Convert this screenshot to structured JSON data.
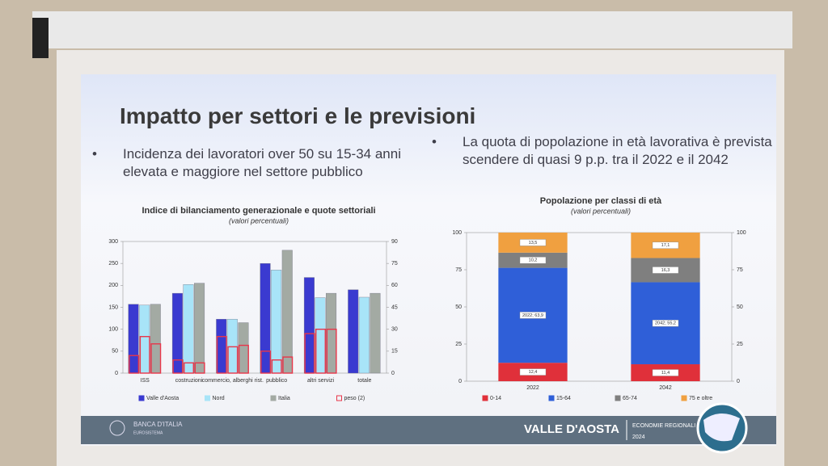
{
  "slide": {
    "title": "Impatto per settori e le previsioni",
    "bullets": [
      "Incidenza dei lavoratori over 50 su 15-34 anni elevata e maggiore nel settore pubblico",
      "La quota di popolazione in età lavorativa è prevista scendere di quasi 9 p.p. tra il 2022 e il 2042"
    ],
    "footer": {
      "logo": "BANCA D'ITALIA",
      "logo_sub": "EUROSISTEMA",
      "region": "VALLE D'AOSTA",
      "series": "ECONOMIE REGIONALI",
      "year": "2024"
    }
  },
  "chart_data": [
    {
      "type": "bar",
      "title": "Indice di bilanciamento generazionale e quote settoriali",
      "subtitle": "(valori percentuali)",
      "categories": [
        "ISS",
        "costruzioni",
        "commercio, alberghi rist.",
        "pubblico",
        "altri servizi",
        "totale"
      ],
      "series": [
        {
          "name": "Valle d'Aosta",
          "color": "#3a3ad0",
          "values": [
            157,
            182,
            123,
            250,
            218,
            190
          ]
        },
        {
          "name": "Nord",
          "color": "#a8e4f8",
          "values": [
            155,
            202,
            123,
            235,
            172,
            173
          ]
        },
        {
          "name": "Italia",
          "color": "#a3aaa3",
          "values": [
            157,
            205,
            115,
            280,
            182,
            182
          ]
        },
        {
          "name": "peso (2)",
          "color": "#e8364a",
          "axis": "y2",
          "values": [
            [
              12,
              25,
              20
            ],
            [
              9,
              7,
              7
            ],
            [
              25,
              18,
              19
            ],
            [
              15,
              9,
              11
            ],
            [
              27,
              30,
              30
            ],
            null
          ]
        }
      ],
      "ylim": [
        0,
        300
      ],
      "yticks": [
        0,
        50,
        100,
        150,
        200,
        250,
        300
      ],
      "y2lim": [
        0,
        90
      ],
      "y2ticks": [
        0,
        15,
        30,
        45,
        60,
        75,
        90
      ],
      "grid": false
    },
    {
      "type": "stacked_bar",
      "title": "Popolazione per classi di età",
      "subtitle": "(valori percentuali)",
      "categories": [
        "2022",
        "2042"
      ],
      "series": [
        {
          "name": "0-14",
          "color": "#e0303a",
          "values": [
            12.4,
            11.4
          ],
          "value_labels": [
            "12,4",
            "11,4"
          ]
        },
        {
          "name": "15-64",
          "color": "#2f5fd8",
          "values": [
            63.9,
            55.2
          ],
          "value_labels": [
            "2022; 63,9",
            "2042; 55,2"
          ]
        },
        {
          "name": "65-74",
          "color": "#7f7f7f",
          "values": [
            10.2,
            16.3
          ],
          "value_labels": [
            "10,2",
            "16,3"
          ]
        },
        {
          "name": "75 e oltre",
          "color": "#f0a040",
          "values": [
            13.5,
            17.1
          ],
          "value_labels": [
            "13,5",
            "17,1"
          ]
        }
      ],
      "ylim": [
        0,
        100
      ],
      "yticks": [
        0,
        25,
        50,
        75,
        100
      ],
      "y2lim": [
        0,
        100
      ],
      "y2ticks": [
        0,
        25,
        50,
        75,
        100
      ],
      "grid": false
    }
  ]
}
